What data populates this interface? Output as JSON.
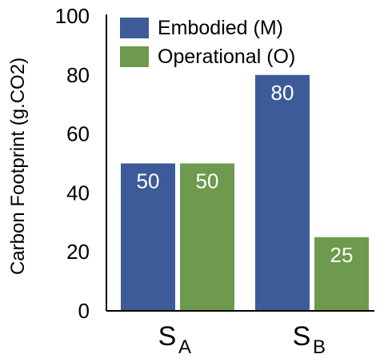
{
  "chart_data": {
    "type": "bar",
    "title": "",
    "ylabel": "Carbon Footprint (g.CO2)",
    "xlabel": "",
    "ylim": [
      0,
      100
    ],
    "yticks": [
      "0",
      "20",
      "40",
      "60",
      "80",
      "100"
    ],
    "ytick_values": [
      0,
      20,
      40,
      60,
      80,
      100
    ],
    "categories": [
      {
        "main": "S",
        "sub": "A"
      },
      {
        "main": "S",
        "sub": "B"
      }
    ],
    "series": [
      {
        "name": "Embodied (M)",
        "color": "#3d5a99",
        "values": [
          50,
          80
        ],
        "labels": [
          "50",
          "80"
        ]
      },
      {
        "name": "Operational (O)",
        "color": "#6d9a4d",
        "values": [
          50,
          25
        ],
        "labels": [
          "50",
          "25"
        ]
      }
    ],
    "legend_position": "top-left",
    "grid": false
  }
}
